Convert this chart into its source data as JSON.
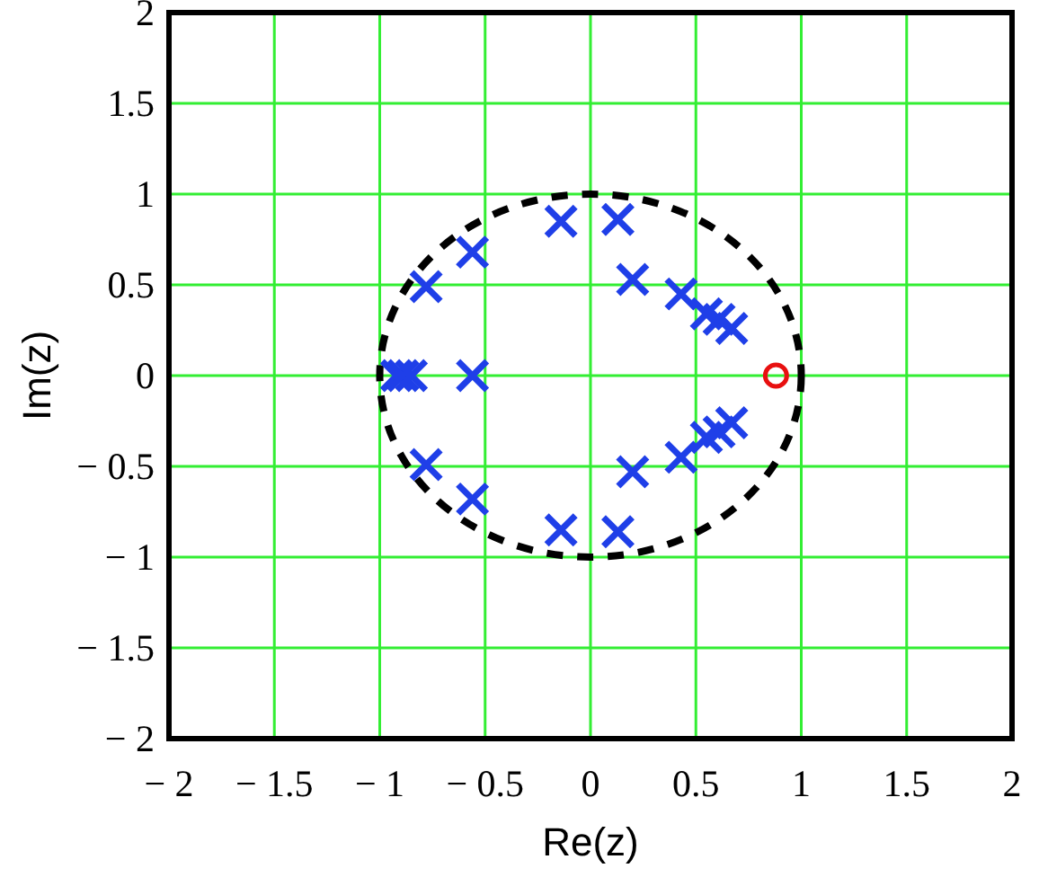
{
  "chart_data": {
    "type": "scatter",
    "xlabel": "Re(z)",
    "ylabel": "Im(z)",
    "xlim": [
      -2,
      2
    ],
    "ylim": [
      -2,
      2
    ],
    "xticks": [
      {
        "value": -2,
        "label": "− 2"
      },
      {
        "value": -1.5,
        "label": "− 1.5"
      },
      {
        "value": -1,
        "label": "− 1"
      },
      {
        "value": -0.5,
        "label": "− 0.5"
      },
      0,
      0.5,
      1,
      1.5,
      2
    ],
    "yticks": [
      {
        "value": -2,
        "label": "− 2"
      },
      {
        "value": -1.5,
        "label": "− 1.5"
      },
      {
        "value": -1,
        "label": "− 1"
      },
      {
        "value": -0.5,
        "label": "− 0.5"
      },
      0,
      0.5,
      1,
      1.5,
      2
    ],
    "grid": true,
    "series": [
      {
        "color": "#1f3fe8",
        "marker": "cross",
        "x": [
          -0.14,
          0.13,
          0.2,
          0.43,
          0.55,
          0.61,
          0.67,
          -0.56,
          -0.78,
          -0.56,
          -0.92,
          -0.89,
          -0.85,
          -0.14,
          0.13,
          0.2,
          0.43,
          0.55,
          0.61,
          0.67,
          -0.56,
          -0.78
        ],
        "values": [
          0.85,
          0.86,
          0.53,
          0.45,
          0.34,
          0.31,
          0.26,
          0.68,
          0.49,
          0,
          0,
          0,
          0,
          -0.85,
          -0.86,
          -0.53,
          -0.45,
          -0.34,
          -0.31,
          -0.26,
          -0.68,
          -0.49
        ]
      },
      {
        "color": "#e81010",
        "marker": "circle",
        "x": [
          0.88
        ],
        "values": [
          0
        ]
      }
    ]
  }
}
